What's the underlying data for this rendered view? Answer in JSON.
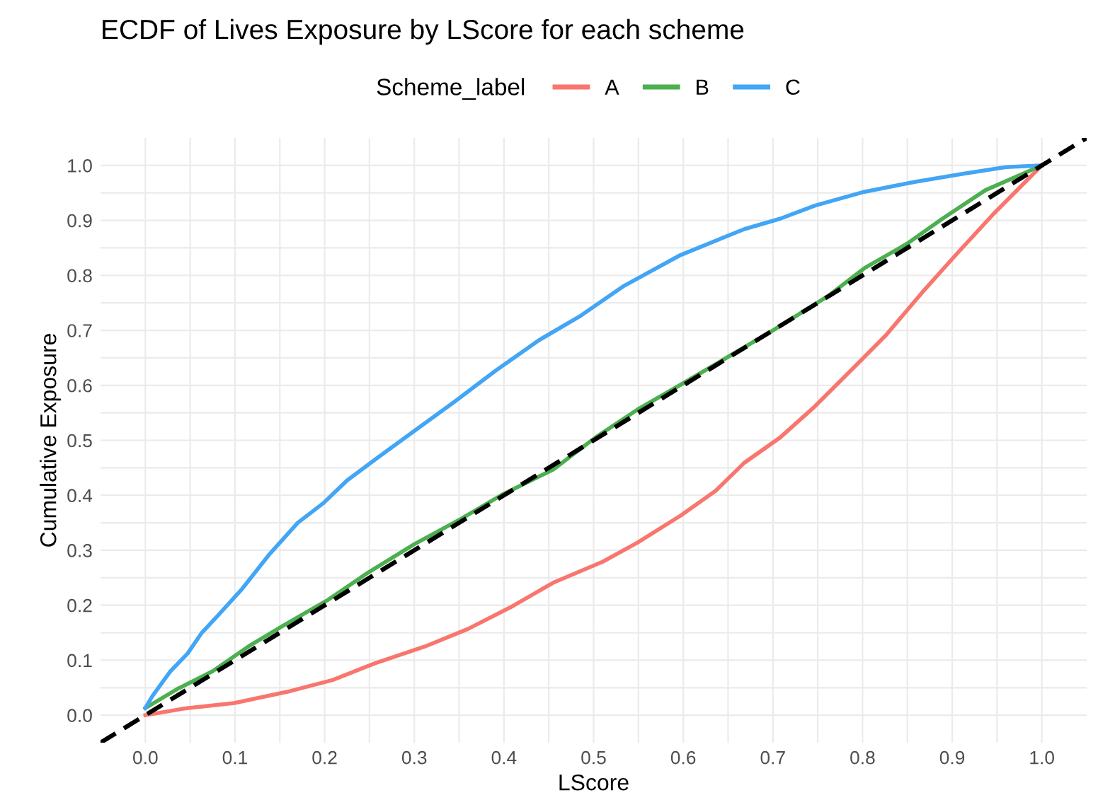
{
  "chart_data": {
    "type": "line",
    "title": "ECDF of Lives Exposure by LScore for each scheme",
    "xlabel": "LScore",
    "ylabel": "Cumulative Exposure",
    "legend_title": "Scheme_label",
    "legend": "top",
    "grid": true,
    "marker": "none",
    "xlim": [
      -0.05,
      1.05
    ],
    "ylim": [
      -0.05,
      1.05
    ],
    "xticks": [
      {
        "value": 0,
        "label": "0.0"
      },
      {
        "value": 0.05,
        "label": null
      },
      0.1,
      {
        "value": 0.15,
        "label": null
      },
      0.2,
      {
        "value": 0.25,
        "label": null
      },
      0.3,
      {
        "value": 0.35,
        "label": null
      },
      0.4,
      {
        "value": 0.45,
        "label": null
      },
      0.5,
      {
        "value": 0.55,
        "label": null
      },
      0.6,
      {
        "value": 0.65,
        "label": null
      },
      0.7,
      {
        "value": 0.75,
        "label": null
      },
      0.8,
      {
        "value": 0.85,
        "label": null
      },
      0.9,
      {
        "value": 0.95,
        "label": null
      },
      {
        "value": 1,
        "label": "1.0"
      }
    ],
    "yticks": [
      {
        "value": 0,
        "label": "0.0"
      },
      {
        "value": 0.05,
        "label": null
      },
      0.1,
      {
        "value": 0.15,
        "label": null
      },
      0.2,
      {
        "value": 0.25,
        "label": null
      },
      0.3,
      {
        "value": 0.35,
        "label": null
      },
      0.4,
      {
        "value": 0.45,
        "label": null
      },
      0.5,
      {
        "value": 0.55,
        "label": null
      },
      0.6,
      {
        "value": 0.65,
        "label": null
      },
      0.7,
      {
        "value": 0.75,
        "label": null
      },
      0.8,
      {
        "value": 0.85,
        "label": null
      },
      0.9,
      {
        "value": 0.95,
        "label": null
      },
      {
        "value": 1,
        "label": "1.0"
      }
    ],
    "series": [
      {
        "name": "A",
        "color": "#f8766d",
        "x": [
          0,
          0.043,
          0.099,
          0.162,
          0.209,
          0.257,
          0.312,
          0.36,
          0.407,
          0.455,
          0.51,
          0.549,
          0.597,
          0.636,
          0.668,
          0.708,
          0.747,
          0.787,
          0.826,
          0.866,
          0.905,
          0.945,
          0.976,
          1
        ],
        "values": [
          0,
          0.012,
          0.022,
          0.044,
          0.064,
          0.095,
          0.125,
          0.157,
          0.196,
          0.241,
          0.279,
          0.314,
          0.363,
          0.408,
          0.459,
          0.505,
          0.562,
          0.627,
          0.691,
          0.768,
          0.839,
          0.91,
          0.961,
          1
        ]
      },
      {
        "name": "B",
        "color": "#4caf50",
        "x": [
          0,
          0.036,
          0.075,
          0.115,
          0.154,
          0.202,
          0.249,
          0.3,
          0.352,
          0.399,
          0.455,
          0.502,
          0.549,
          0.597,
          0.644,
          0.7,
          0.763,
          0.802,
          0.85,
          0.889,
          0.937,
          1
        ],
        "values": [
          0.013,
          0.048,
          0.08,
          0.125,
          0.163,
          0.208,
          0.26,
          0.311,
          0.357,
          0.402,
          0.447,
          0.505,
          0.556,
          0.601,
          0.646,
          0.7,
          0.764,
          0.813,
          0.858,
          0.903,
          0.955,
          1
        ]
      },
      {
        "name": "C",
        "color": "#42a5f5",
        "x": [
          0,
          0.008,
          0.028,
          0.047,
          0.063,
          0.083,
          0.107,
          0.138,
          0.17,
          0.198,
          0.225,
          0.257,
          0.3,
          0.344,
          0.391,
          0.439,
          0.486,
          0.534,
          0.597,
          0.668,
          0.708,
          0.747,
          0.802,
          0.858,
          0.913,
          0.96,
          1
        ],
        "values": [
          0.013,
          0.035,
          0.08,
          0.112,
          0.15,
          0.185,
          0.228,
          0.292,
          0.35,
          0.385,
          0.427,
          0.466,
          0.517,
          0.569,
          0.627,
          0.682,
          0.727,
          0.781,
          0.837,
          0.884,
          0.903,
          0.927,
          0.952,
          0.97,
          0.985,
          0.997,
          1
        ]
      },
      {
        "color": "#000000",
        "line_style": "dashed",
        "x": [
          -0.05,
          1.05
        ],
        "values": [
          -0.05,
          1.05
        ]
      }
    ]
  }
}
